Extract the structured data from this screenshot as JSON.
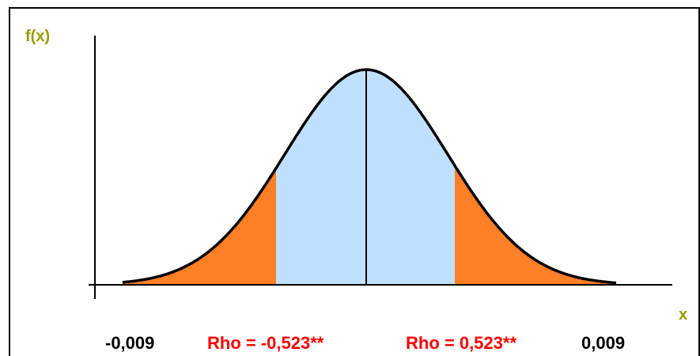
{
  "axis_labels": {
    "y": "f(x)",
    "x": "x"
  },
  "bottom_labels": [
    "-0,009",
    "Rho = -0,523**",
    "Rho = 0,523**",
    "0,009"
  ]
}
